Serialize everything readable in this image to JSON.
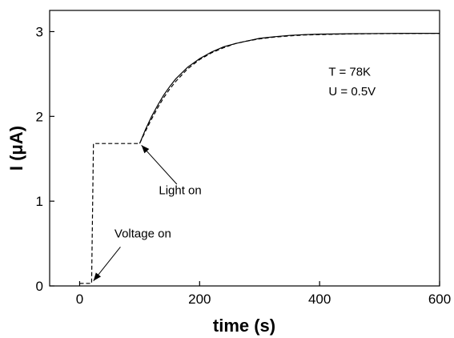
{
  "chart_data": {
    "type": "line",
    "xlabel": "time (s)",
    "ylabel_main": "I (",
    "ylabel_unit": "μA",
    "ylabel_close": ")",
    "xlim": [
      -50,
      600
    ],
    "ylim": [
      0,
      3.25
    ],
    "x_ticks": [
      0,
      200,
      400,
      600
    ],
    "y_ticks": [
      0,
      1,
      2,
      3
    ],
    "series": [
      {
        "style": "solid",
        "x": [
          100,
          110,
          120,
          130,
          140,
          150,
          160,
          180,
          200,
          220,
          240,
          260,
          280,
          300,
          325,
          350,
          375,
          400,
          450,
          500,
          550,
          600
        ],
        "y": [
          1.68,
          1.85,
          2.0,
          2.13,
          2.25,
          2.35,
          2.44,
          2.58,
          2.68,
          2.76,
          2.82,
          2.86,
          2.89,
          2.92,
          2.94,
          2.955,
          2.965,
          2.97,
          2.975,
          2.978,
          2.98,
          2.98
        ]
      },
      {
        "style": "dashed",
        "x": [
          0,
          20,
          20,
          23,
          26,
          100,
          110,
          120,
          130,
          140,
          150,
          160,
          180,
          200,
          220,
          240,
          260,
          280,
          300,
          325,
          350,
          375,
          400,
          450,
          500,
          550,
          600
        ],
        "y": [
          0.03,
          0.03,
          0.03,
          1.68,
          1.68,
          1.68,
          1.83,
          1.97,
          2.1,
          2.22,
          2.32,
          2.41,
          2.56,
          2.67,
          2.75,
          2.81,
          2.86,
          2.89,
          2.915,
          2.935,
          2.95,
          2.96,
          2.965,
          2.972,
          2.976,
          2.978,
          2.98
        ]
      }
    ],
    "annotations": [
      {
        "text": "T = 78K",
        "x": 415,
        "y": 2.48,
        "anchor": "start"
      },
      {
        "text": "U = 0.5V",
        "x": 415,
        "y": 2.25,
        "anchor": "start"
      },
      {
        "text": "Light on",
        "x": 132,
        "y": 1.08,
        "anchor": "start",
        "arrow_from": [
          162,
          1.2
        ],
        "arrow_to": [
          103,
          1.66
        ]
      },
      {
        "text": "Voltage on",
        "x": 58,
        "y": 0.57,
        "anchor": "start",
        "arrow_from": [
          68,
          0.46
        ],
        "arrow_to": [
          23,
          0.06
        ]
      }
    ]
  }
}
